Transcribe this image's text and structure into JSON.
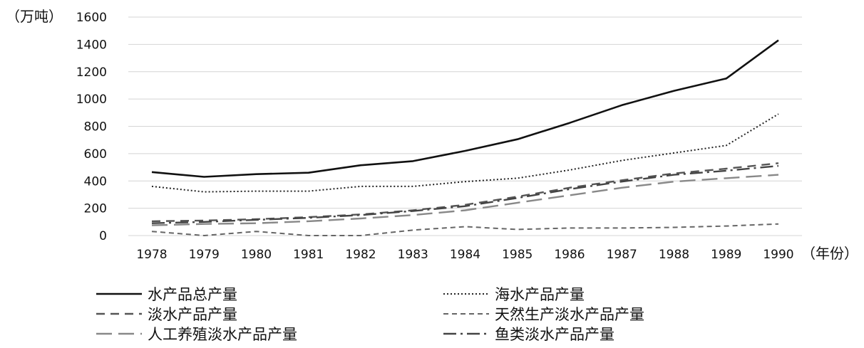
{
  "chart_data": {
    "type": "line",
    "title": "",
    "ylabel": "（万吨）",
    "xlabel": "（年份）",
    "ylim": [
      0,
      1600
    ],
    "yticks": [
      "1600",
      "1400",
      "1200",
      "1000",
      "800",
      "600",
      "400",
      "200",
      "0"
    ],
    "categories": [
      "1978",
      "1979",
      "1980",
      "1981",
      "1982",
      "1983",
      "1984",
      "1985",
      "1986",
      "1987",
      "1988",
      "1989",
      "1990"
    ],
    "grid": true,
    "legend_placement": "bottom",
    "series": [
      {
        "name": "水产品总产量",
        "dash": "solid",
        "color": "#111111",
        "values": [
          465,
          430,
          450,
          460,
          515,
          545,
          620,
          705,
          825,
          955,
          1060,
          1150,
          1430
        ]
      },
      {
        "name": "海水产品产量",
        "dash": "dotted",
        "color": "#222222",
        "values": [
          360,
          320,
          325,
          325,
          360,
          360,
          395,
          420,
          480,
          550,
          605,
          660,
          890
        ]
      },
      {
        "name": "淡水产品产量",
        "dash": "dashed",
        "color": "#555555",
        "values": [
          105,
          110,
          120,
          135,
          155,
          185,
          225,
          285,
          350,
          405,
          455,
          490,
          530
        ]
      },
      {
        "name": "天然生产淡水产品产量",
        "dash": "short-dashed",
        "color": "#666666",
        "values": [
          30,
          0,
          30,
          0,
          0,
          40,
          65,
          45,
          55,
          55,
          60,
          70,
          85
        ]
      },
      {
        "name": "人工养殖淡水产品产量",
        "dash": "long-dashed",
        "color": "#888888",
        "values": [
          75,
          85,
          90,
          105,
          125,
          150,
          185,
          240,
          295,
          350,
          395,
          420,
          445
        ]
      },
      {
        "name": "鱼类淡水产品产量",
        "dash": "dash-dot",
        "color": "#444444",
        "values": [
          90,
          100,
          115,
          130,
          150,
          180,
          215,
          275,
          340,
          395,
          445,
          475,
          510
        ]
      }
    ]
  }
}
